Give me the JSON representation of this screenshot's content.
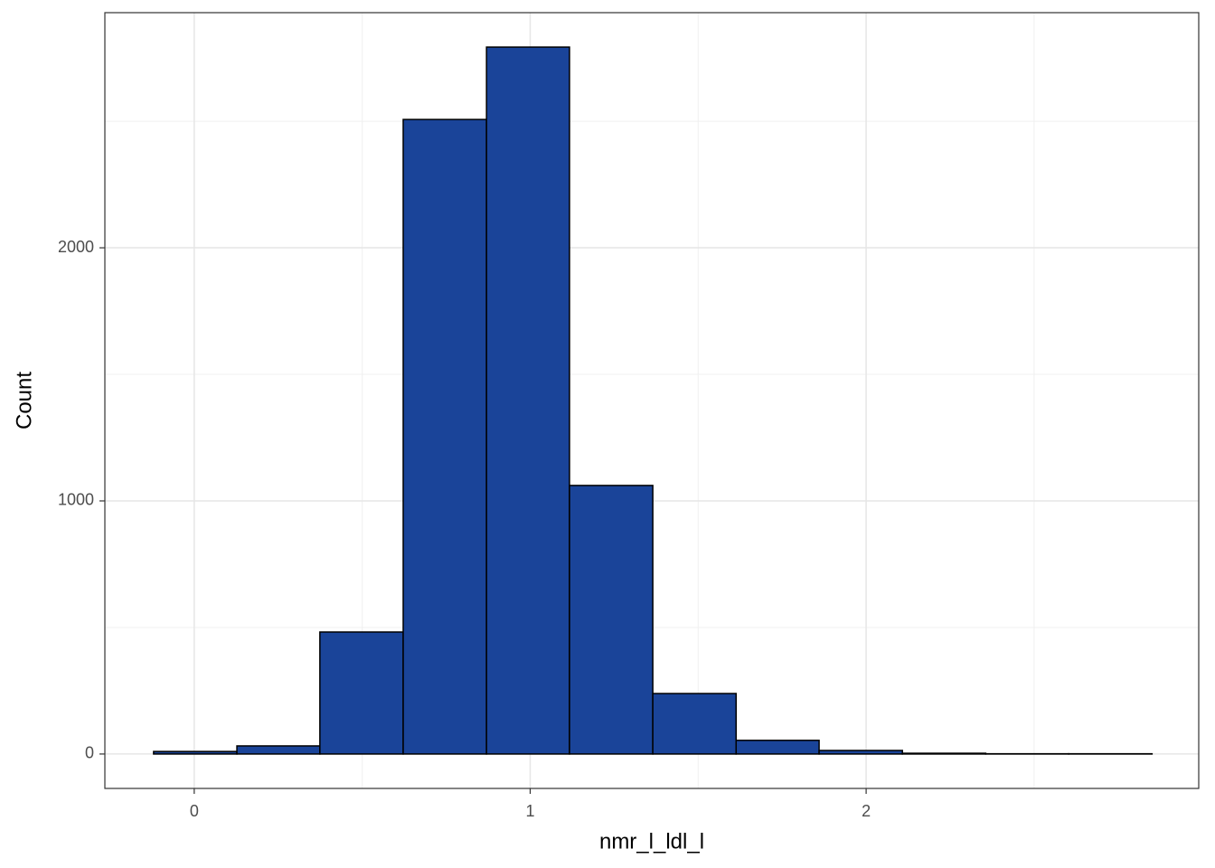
{
  "chart_data": {
    "type": "histogram",
    "x_label": "nmr_l_ldl_l",
    "y_label": "Count",
    "bins": [
      -0.121,
      0.127,
      0.374,
      0.622,
      0.87,
      1.117,
      1.365,
      1.613,
      1.86,
      2.108,
      2.356,
      2.603,
      2.851
    ],
    "values": [
      10,
      32,
      482,
      2507,
      2793,
      1061,
      239,
      54,
      14,
      3,
      1,
      1
    ],
    "color": "#1a4499",
    "edge_color": "#000000",
    "xlim": [
      -0.266,
      2.99
    ],
    "ylim": [
      -136,
      2929
    ],
    "xticks": [
      0,
      1,
      2
    ],
    "yticks": [
      0,
      1000,
      2000
    ],
    "x_minor_grid": [
      0.5,
      1.5,
      2.5
    ],
    "y_minor_grid": [
      500,
      1500,
      2500
    ],
    "grid": true
  }
}
